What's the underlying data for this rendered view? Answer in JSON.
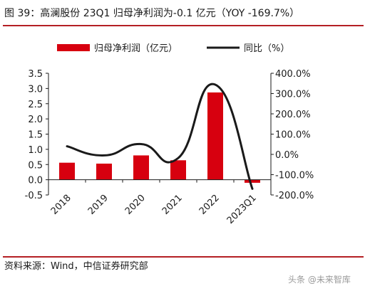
{
  "figure": {
    "title": "图 39：高澜股份 23Q1 归母净利润为-0.1 亿元（YOY -169.7%）",
    "source": "资料来源：Wind，中信证券研究部",
    "watermark": "头条 @未来智库"
  },
  "chart_data": {
    "type": "bar",
    "categories": [
      "2018",
      "2019",
      "2020",
      "2021",
      "2022",
      "2023Q1"
    ],
    "series": [
      {
        "name": "归母净利润（亿元）",
        "type": "bar",
        "axis": "left",
        "color": "#d7000f",
        "values": [
          0.56,
          0.53,
          0.8,
          0.64,
          2.87,
          -0.1
        ]
      },
      {
        "name": "同比（%）",
        "type": "line",
        "axis": "right",
        "color": "#1a1a1a",
        "values": [
          40.0,
          -5.0,
          51.0,
          -18.0,
          344.0,
          -169.7
        ]
      }
    ],
    "y_left": {
      "min": -0.5,
      "max": 3.5,
      "ticks": [
        -0.5,
        0.0,
        0.5,
        1.0,
        1.5,
        2.0,
        2.5,
        3.0,
        3.5
      ],
      "tick_labels": [
        "-0.5",
        "0.0",
        "0.5",
        "1.0",
        "1.5",
        "2.0",
        "2.5",
        "3.0",
        "3.5"
      ]
    },
    "y_right": {
      "min": -200,
      "max": 400,
      "ticks": [
        -200,
        -100,
        0,
        100,
        200,
        300,
        400
      ],
      "tick_labels": [
        "-200.0%",
        "-100.0%",
        "0.0%",
        "100.0%",
        "200.0%",
        "300.0%",
        "400.0%"
      ]
    },
    "legend": {
      "position": "top-center"
    },
    "grid": false
  }
}
